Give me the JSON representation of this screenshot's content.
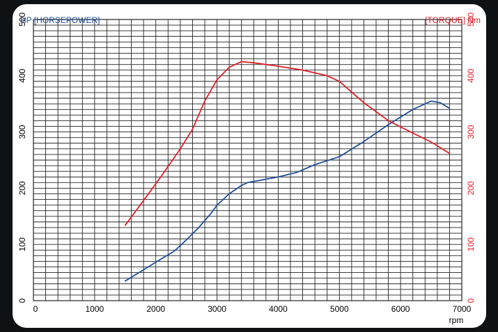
{
  "colors": {
    "hp": "#1f4f9c",
    "torque": "#e0202a",
    "grid": "#222222",
    "background": "#0f1214",
    "card": "#ffffff"
  },
  "chart_data": {
    "type": "line",
    "title": "",
    "left_axis_label": "HP [HORSEPOWER]",
    "right_axis_label": "[TORQUE] Nm",
    "xlabel": "rpm",
    "xlim": [
      0,
      7000
    ],
    "ylim_left": [
      0,
      500
    ],
    "ylim_right": [
      0,
      500
    ],
    "x_ticks": [
      "0",
      "1000",
      "2000",
      "3000",
      "4000",
      "5000",
      "6000",
      "7000"
    ],
    "y_ticks_left": [
      "0",
      "100",
      "200",
      "300",
      "400",
      "500"
    ],
    "y_ticks_right": [
      "0",
      "100",
      "200",
      "300",
      "400",
      "500"
    ],
    "grid": true,
    "series": [
      {
        "name": "HP [HORSEPOWER]",
        "axis": "left",
        "x": [
          1500,
          1800,
          2100,
          2300,
          2500,
          2700,
          2900,
          3000,
          3200,
          3400,
          3500,
          3700,
          4000,
          4300,
          4600,
          5000,
          5400,
          5800,
          6200,
          6500,
          6650,
          6800
        ],
        "y": [
          35,
          55,
          75,
          88,
          108,
          130,
          155,
          170,
          190,
          205,
          210,
          214,
          220,
          228,
          242,
          256,
          283,
          313,
          340,
          355,
          352,
          342
        ]
      },
      {
        "name": "[TORQUE] Nm",
        "axis": "right",
        "x": [
          1500,
          1800,
          2100,
          2400,
          2600,
          2800,
          3000,
          3200,
          3400,
          3600,
          4000,
          4400,
          4800,
          5000,
          5400,
          5800,
          6200,
          6500,
          6800
        ],
        "y": [
          134,
          178,
          223,
          270,
          305,
          355,
          393,
          415,
          425,
          423,
          417,
          410,
          400,
          390,
          352,
          320,
          298,
          282,
          262
        ]
      }
    ]
  }
}
